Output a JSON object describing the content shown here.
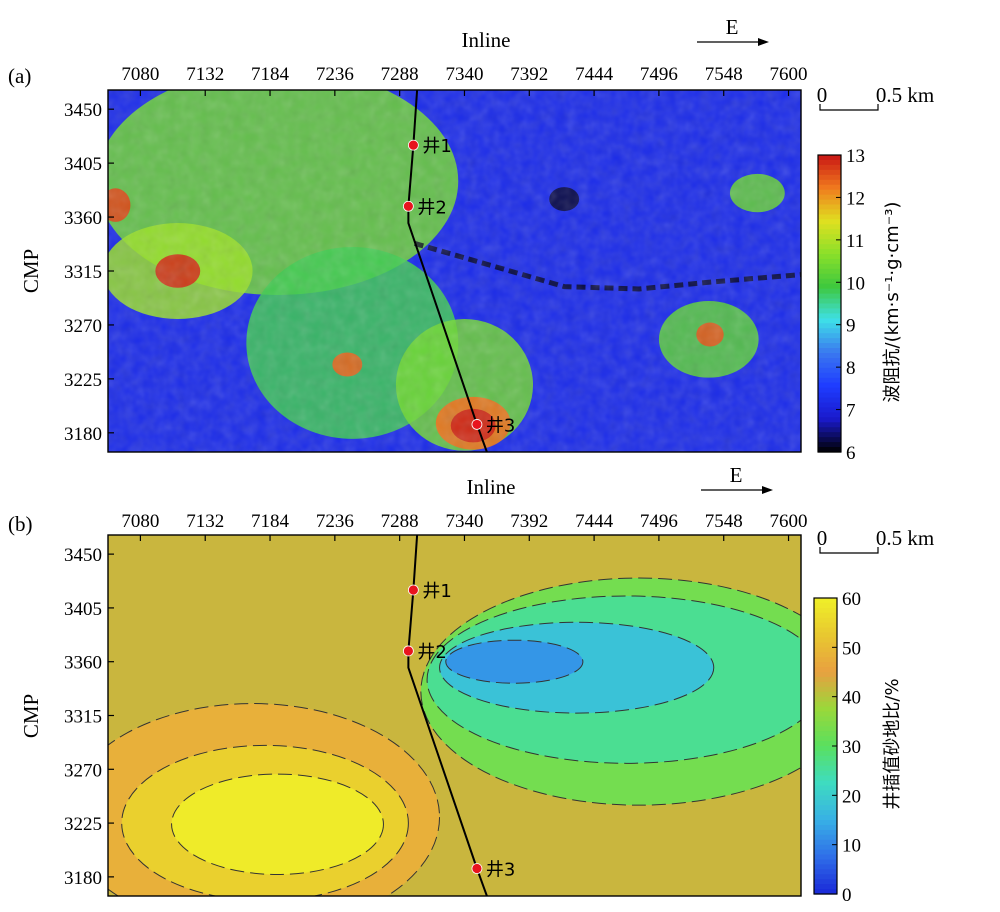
{
  "chart_data": [
    {
      "type": "heatmap",
      "panel_label": "(a)",
      "xlabel": "Inline",
      "ylabel": "CMP",
      "x_ticks": [
        7080,
        7132,
        7184,
        7236,
        7288,
        7340,
        7392,
        7444,
        7496,
        7548,
        7600
      ],
      "y_ticks": [
        3450,
        3405,
        3360,
        3315,
        3270,
        3225,
        3180
      ],
      "xlim": [
        7054,
        7610
      ],
      "ylim": [
        3164,
        3466
      ],
      "direction_label": "E",
      "scale_bar": {
        "start": "0",
        "end": "0.5 km"
      },
      "colorbar": {
        "label": "波阻抗/(km·s⁻¹·g·cm⁻³)",
        "ticks": [
          6,
          7,
          8,
          9,
          10,
          11,
          12,
          13
        ],
        "range": [
          6,
          13
        ],
        "colors": [
          "#000000",
          "#1a1acc",
          "#1e3cff",
          "#3a78f0",
          "#3ee0e8",
          "#3ec83e",
          "#8be02a",
          "#e0e020",
          "#f07a1e",
          "#c81414"
        ]
      },
      "wells": [
        {
          "label": "井1",
          "inline": 7299,
          "cmp": 3420
        },
        {
          "label": "井2",
          "inline": 7295,
          "cmp": 3369
        },
        {
          "label": "井3",
          "inline": 7350,
          "cmp": 3187
        }
      ],
      "well_path": [
        {
          "inline": 7302,
          "cmp": 3466
        },
        {
          "inline": 7299,
          "cmp": 3420
        },
        {
          "inline": 7295,
          "cmp": 3369
        },
        {
          "inline": 7295,
          "cmp": 3355
        },
        {
          "inline": 7350,
          "cmp": 3187
        },
        {
          "inline": 7358,
          "cmp": 3164
        }
      ],
      "features": [
        {
          "kind": "ellipse",
          "inline": 7190,
          "cmp": 3390,
          "r_inline": 145,
          "r_cmp": 95,
          "value": 10.4
        },
        {
          "kind": "ellipse",
          "inline": 7250,
          "cmp": 3255,
          "r_inline": 85,
          "r_cmp": 80,
          "value": 9.8
        },
        {
          "kind": "ellipse",
          "inline": 7340,
          "cmp": 3220,
          "r_inline": 55,
          "r_cmp": 55,
          "value": 10.4
        },
        {
          "kind": "ellipse",
          "inline": 7110,
          "cmp": 3315,
          "r_inline": 60,
          "r_cmp": 40,
          "value": 10.8
        },
        {
          "kind": "ellipse",
          "inline": 7536,
          "cmp": 3258,
          "r_inline": 40,
          "r_cmp": 32,
          "value": 10.2
        },
        {
          "kind": "ellipse",
          "inline": 7575,
          "cmp": 3380,
          "r_inline": 22,
          "r_cmp": 16,
          "value": 10.3
        },
        {
          "kind": "ellipse",
          "inline": 7110,
          "cmp": 3315,
          "r_inline": 18,
          "r_cmp": 14,
          "value": 12.8
        },
        {
          "kind": "ellipse",
          "inline": 7060,
          "cmp": 3370,
          "r_inline": 12,
          "r_cmp": 14,
          "value": 12.6
        },
        {
          "kind": "ellipse",
          "inline": 7246,
          "cmp": 3237,
          "r_inline": 12,
          "r_cmp": 10,
          "value": 12.4
        },
        {
          "kind": "ellipse",
          "inline": 7537,
          "cmp": 3262,
          "r_inline": 11,
          "r_cmp": 10,
          "value": 12.5
        },
        {
          "kind": "ellipse",
          "inline": 7347,
          "cmp": 3188,
          "r_inline": 30,
          "r_cmp": 22,
          "value": 12.3
        },
        {
          "kind": "ellipse",
          "inline": 7347,
          "cmp": 3186,
          "r_inline": 18,
          "r_cmp": 14,
          "value": 12.9
        },
        {
          "kind": "ellipse",
          "inline": 7420,
          "cmp": 3375,
          "r_inline": 12,
          "r_cmp": 10,
          "value": 6.2
        }
      ]
    },
    {
      "type": "heatmap",
      "panel_label": "(b)",
      "xlabel": "Inline",
      "ylabel": "CMP",
      "x_ticks": [
        7080,
        7132,
        7184,
        7236,
        7288,
        7340,
        7392,
        7444,
        7496,
        7548,
        7600
      ],
      "y_ticks": [
        3450,
        3405,
        3360,
        3315,
        3270,
        3225,
        3180
      ],
      "xlim": [
        7054,
        7610
      ],
      "ylim": [
        3164,
        3466
      ],
      "direction_label": "E",
      "scale_bar": {
        "start": "0",
        "end": "0.5 km"
      },
      "colorbar": {
        "label": "井插值砂地比/%",
        "ticks": [
          0,
          10,
          20,
          30,
          40,
          50,
          60
        ],
        "range": [
          0,
          60
        ],
        "colors": [
          "#1a28d8",
          "#2f6ee8",
          "#38b0e6",
          "#3edcc0",
          "#5ae05e",
          "#9ad83a",
          "#e8a040",
          "#e8c830",
          "#f0f028"
        ]
      },
      "wells": [
        {
          "label": "井1",
          "inline": 7299,
          "cmp": 3420
        },
        {
          "label": "井2",
          "inline": 7295,
          "cmp": 3369
        },
        {
          "label": "井3",
          "inline": 7350,
          "cmp": 3187
        }
      ],
      "well_path": [
        {
          "inline": 7302,
          "cmp": 3466
        },
        {
          "inline": 7299,
          "cmp": 3420
        },
        {
          "inline": 7295,
          "cmp": 3369
        },
        {
          "inline": 7295,
          "cmp": 3355
        },
        {
          "inline": 7350,
          "cmp": 3187
        },
        {
          "inline": 7358,
          "cmp": 3164
        }
      ]
    }
  ]
}
